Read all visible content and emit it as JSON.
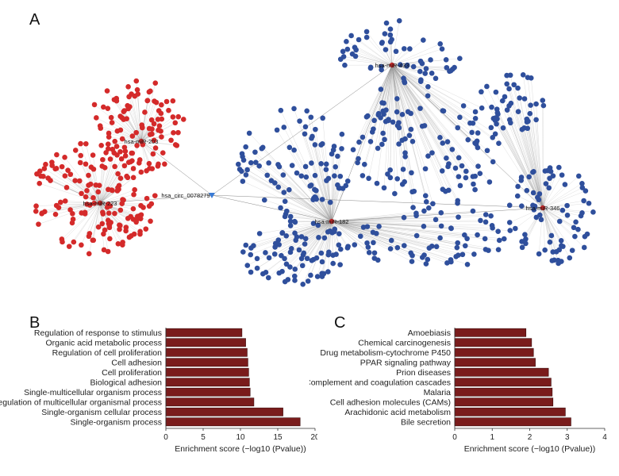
{
  "panels": {
    "a": "A",
    "b": "B",
    "c": "C"
  },
  "colors": {
    "bar": "#7a1c1c",
    "bar_edge": "#3a0a0a",
    "red_node": "#d42a2a",
    "blue_node": "#2f4f9c",
    "edge": "#9a9a9a"
  },
  "network": {
    "hubs": [
      {
        "id": "mir203",
        "label": "hsa-miR-203"
      },
      {
        "id": "mir223",
        "label": "hsa-miR-223"
      },
      {
        "id": "circ",
        "label": "hsa_circ_0078279"
      },
      {
        "id": "mir433",
        "label": "hsa-miR-433"
      },
      {
        "id": "mir182",
        "label": "hsa-miR-182"
      },
      {
        "id": "mir346",
        "label": "hsa-miR-346"
      }
    ]
  },
  "chart_data": [
    {
      "type": "bar",
      "orientation": "horizontal",
      "panel": "B",
      "categories": [
        "Regulation of response to stimulus",
        "Organic acid metabolic process",
        "Regulation of cell proliferation",
        "Cell adhesion",
        "Cell proliferation",
        "Biological adhesion",
        "Single-multicellular organism process",
        "Regulation of multicellular organismal process",
        "Single-organism cellular process",
        "Single-organism process"
      ],
      "values": [
        10.2,
        10.7,
        10.9,
        11.0,
        11.1,
        11.2,
        11.3,
        11.8,
        15.7,
        18.0
      ],
      "xlabel": "Enrichment score (−log10 (Pvalue))",
      "xlim": [
        0,
        20
      ],
      "xticks": [
        0,
        5,
        10,
        15,
        20
      ],
      "grid": false
    },
    {
      "type": "bar",
      "orientation": "horizontal",
      "panel": "C",
      "categories": [
        "Amoebiasis",
        "Chemical carcinogenesis",
        "Drug metabolism-cytochrome P450",
        "PPAR signaling pathway",
        "Prion diseases",
        "Complement and coagulation cascades",
        "Malaria",
        "Cell adhesion molecules (CAMs)",
        "Arachidonic acid metabolism",
        "Bile secretion"
      ],
      "values": [
        1.9,
        2.05,
        2.1,
        2.15,
        2.5,
        2.57,
        2.6,
        2.62,
        2.95,
        3.1
      ],
      "xlabel": "Enrichment score (−log10 (Pvalue))",
      "xlim": [
        0,
        4
      ],
      "xticks": [
        0,
        1,
        2,
        3,
        4
      ],
      "grid": false
    }
  ]
}
